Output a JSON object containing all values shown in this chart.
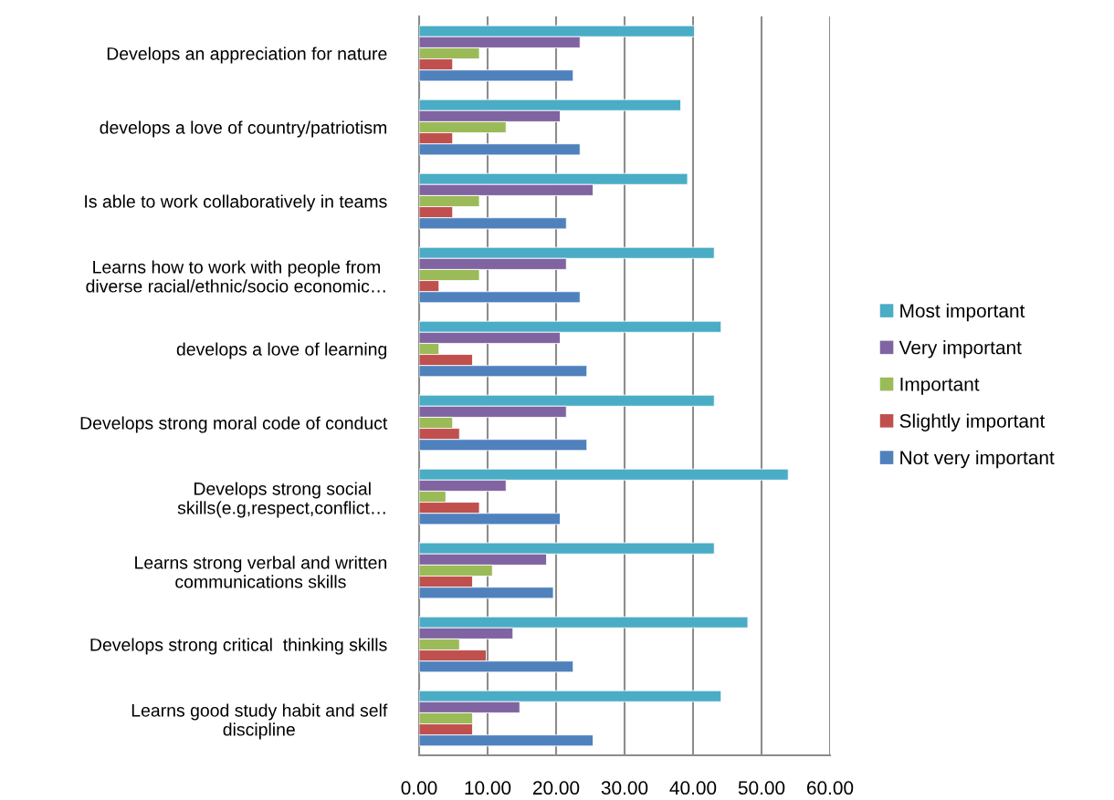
{
  "chart_data": {
    "type": "bar",
    "orientation": "horizontal",
    "categories": [
      "Develops an appreciation for nature",
      "develops a love of country/patriotism",
      "Is able to work collaboratively in teams",
      "Learns how to work with people from\ndiverse racial/ethnic/socio economic…",
      "develops a love of learning",
      "Develops strong moral code of conduct",
      "Develops strong social\nskills(e.g,respect,conflict…",
      "Learns strong verbal and written\ncommunications skills",
      "Develops strong critical  thinking skills",
      "Learns good study habit and self\ndiscipline"
    ],
    "series": [
      {
        "name": "Most important",
        "color": "#4bacc6",
        "values": [
          40.2,
          38.2,
          39.2,
          43.1,
          44.1,
          43.1,
          53.9,
          43.1,
          48.0,
          44.1
        ]
      },
      {
        "name": "Very important",
        "color": "#8064a2",
        "values": [
          23.5,
          20.6,
          25.4,
          21.5,
          20.6,
          21.5,
          12.7,
          18.6,
          13.7,
          14.7
        ]
      },
      {
        "name": "Important",
        "color": "#9bbb59",
        "values": [
          8.8,
          12.7,
          8.8,
          8.8,
          2.9,
          4.9,
          3.9,
          10.7,
          5.9,
          7.8
        ]
      },
      {
        "name": "Slightly important",
        "color": "#c0504d",
        "values": [
          4.9,
          4.9,
          4.9,
          2.9,
          7.8,
          5.9,
          8.8,
          7.8,
          9.8,
          7.8
        ]
      },
      {
        "name": "Not very important",
        "color": "#4f81bd",
        "values": [
          22.5,
          23.5,
          21.5,
          23.5,
          24.5,
          24.5,
          20.6,
          19.6,
          22.5,
          25.4
        ]
      }
    ],
    "xlim": [
      0,
      60
    ],
    "xticks": [
      {
        "value": 0,
        "label": "0.00"
      },
      {
        "value": 10,
        "label": "10.00"
      },
      {
        "value": 20,
        "label": "20.00"
      },
      {
        "value": 30,
        "label": "30.00"
      },
      {
        "value": 40,
        "label": "40.00"
      },
      {
        "value": 50,
        "label": "50.00"
      },
      {
        "value": 60,
        "label": "60.00"
      }
    ],
    "grid": "x",
    "legend": "right"
  }
}
